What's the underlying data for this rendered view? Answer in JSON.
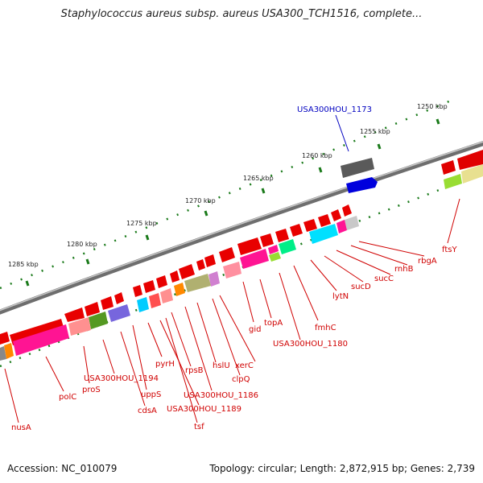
{
  "title": "Staphylococcus aureus subsp. aureus USA300_TCH1516, complete...",
  "footer": {
    "accession": "Accession: NC_010079",
    "stats": "Topology: circular; Length: 2,872,915 bp; Genes: 2,739"
  },
  "kbp_labels": [
    "1250 kbp",
    "1255 kbp",
    "1260 kbp",
    "1265 kbp",
    "1270 kbp",
    "1275 kbp",
    "1280 kbp",
    "1285 kbp"
  ],
  "highlighted_gene": "USA300HOU_1173",
  "gene_labels": [
    "ftsY",
    "rbgA",
    "rnhB",
    "sucC",
    "sucD",
    "lytN",
    "fmhC",
    "USA300HOU_1180",
    "topA",
    "gid",
    "xerC",
    "clpQ",
    "hslU",
    "USA300HOU_1186",
    "rpsB",
    "tsf",
    "USA300HOU_1189",
    "pyrH",
    "uppS",
    "cdsA",
    "USA300HOU_1194",
    "proS",
    "polC",
    "nusA"
  ],
  "colors": {
    "backbone": "#8c8c8c",
    "tick": "#1a7a1a",
    "label_red": "#d00000",
    "label_blue": "#0000c0"
  }
}
